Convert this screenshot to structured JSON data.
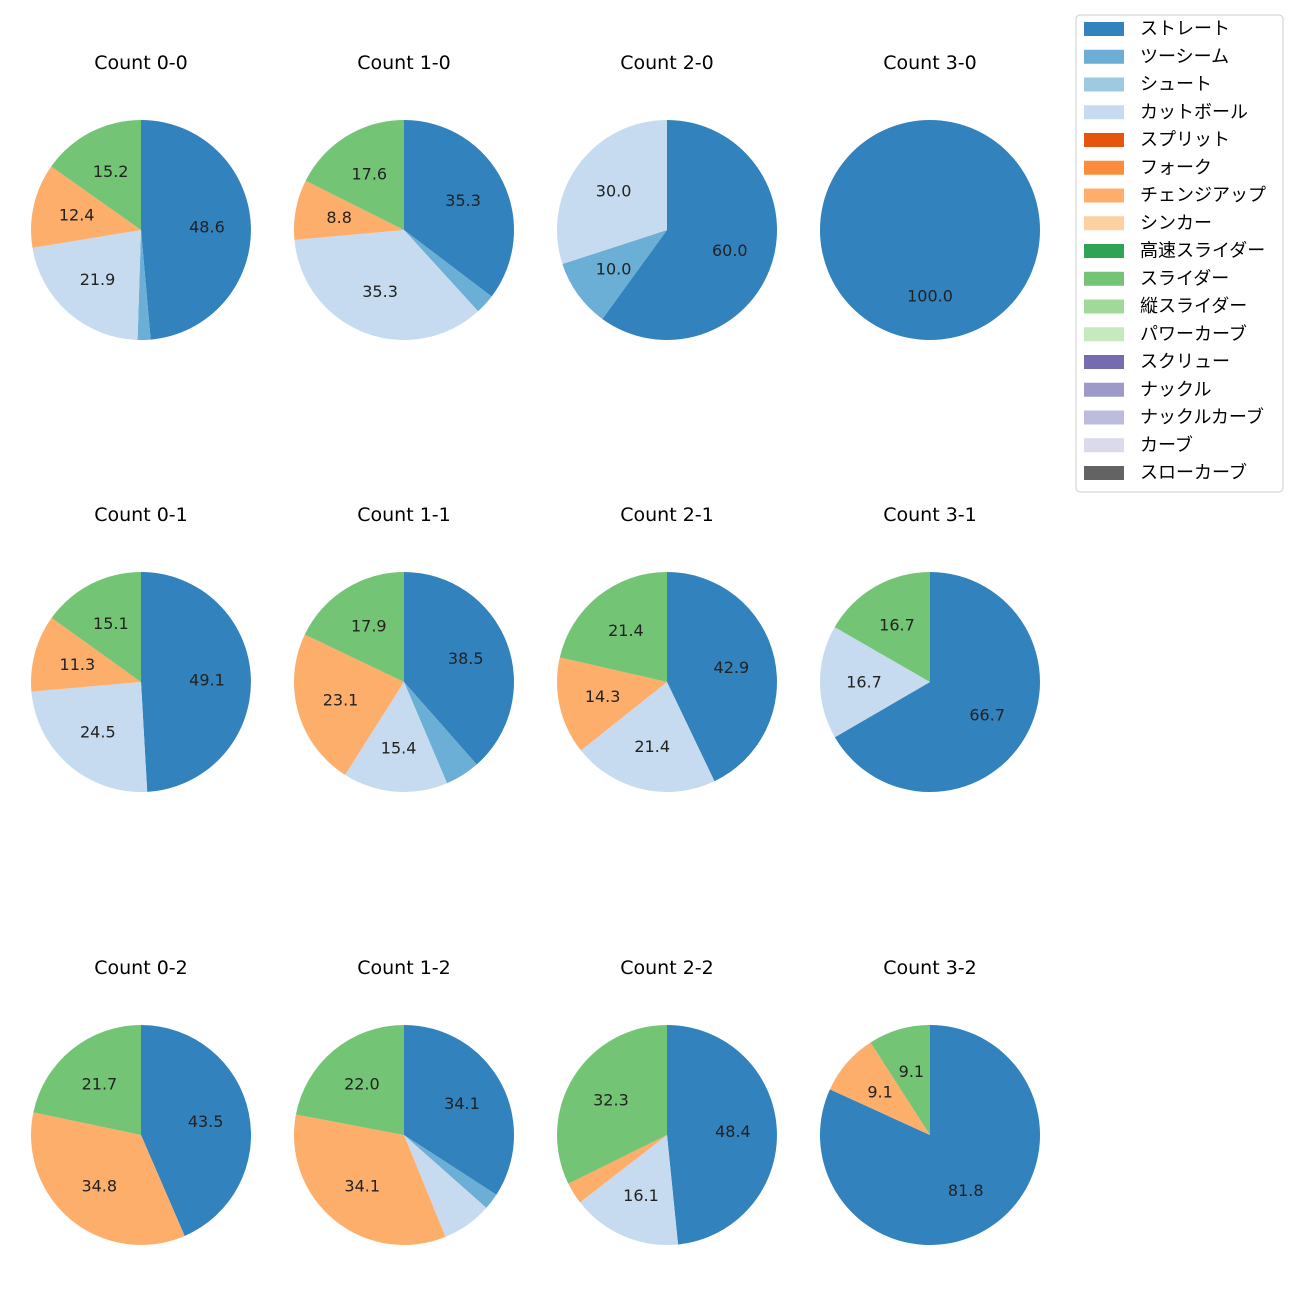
{
  "chart_data": {
    "type": "pie",
    "title": "",
    "categories": [
      "ストレート",
      "ツーシーム",
      "シュート",
      "カットボール",
      "スプリット",
      "フォーク",
      "チェンジアップ",
      "シンカー",
      "高速スライダー",
      "スライダー",
      "縦スライダー",
      "パワーカーブ",
      "スクリュー",
      "ナックル",
      "ナックルカーブ",
      "カーブ",
      "スローカーブ"
    ],
    "colors": [
      "#3182bd",
      "#6baed6",
      "#9ecae1",
      "#c6dbef",
      "#e6550d",
      "#fd8d3c",
      "#fdae6b",
      "#fdd0a2",
      "#31a354",
      "#74c476",
      "#a1d99b",
      "#c7e9c0",
      "#756bb1",
      "#9e9ac8",
      "#bcbddc",
      "#dadaeb",
      "#636363"
    ],
    "legend_position": "top-right",
    "pies": [
      {
        "title": "Count 0-0",
        "values": [
          48.6,
          1.9,
          0,
          21.9,
          0,
          0,
          12.4,
          0,
          0,
          15.2,
          0,
          0,
          0,
          0,
          0,
          0,
          0
        ],
        "labels": [
          "48.6",
          "",
          "",
          "21.9",
          "",
          "",
          "12.4",
          "",
          "",
          "15.2",
          "",
          "",
          "",
          "",
          "",
          "",
          ""
        ]
      },
      {
        "title": "Count 1-0",
        "values": [
          35.3,
          2.9,
          0,
          35.3,
          0,
          0,
          8.8,
          0,
          0,
          17.6,
          0,
          0,
          0,
          0,
          0,
          0,
          0
        ],
        "labels": [
          "35.3",
          "",
          "",
          "35.3",
          "",
          "",
          "8.8",
          "",
          "",
          "17.6",
          "",
          "",
          "",
          "",
          "",
          "",
          ""
        ]
      },
      {
        "title": "Count 2-0",
        "values": [
          60.0,
          10.0,
          0,
          30.0,
          0,
          0,
          0,
          0,
          0,
          0,
          0,
          0,
          0,
          0,
          0,
          0,
          0
        ],
        "labels": [
          "60.0",
          "10.0",
          "",
          "30.0",
          "",
          "",
          "",
          "",
          "",
          "",
          "",
          "",
          "",
          "",
          "",
          "",
          ""
        ]
      },
      {
        "title": "Count 3-0",
        "values": [
          100.0,
          0,
          0,
          0,
          0,
          0,
          0,
          0,
          0,
          0,
          0,
          0,
          0,
          0,
          0,
          0,
          0
        ],
        "labels": [
          "100.0",
          "",
          "",
          "",
          "",
          "",
          "",
          "",
          "",
          "",
          "",
          "",
          "",
          "",
          "",
          "",
          ""
        ]
      },
      {
        "title": "Count 0-1",
        "values": [
          49.1,
          0,
          0,
          24.5,
          0,
          0,
          11.3,
          0,
          0,
          15.1,
          0,
          0,
          0,
          0,
          0,
          0,
          0
        ],
        "labels": [
          "49.1",
          "",
          "",
          "24.5",
          "",
          "",
          "11.3",
          "",
          "",
          "15.1",
          "",
          "",
          "",
          "",
          "",
          "",
          ""
        ]
      },
      {
        "title": "Count 1-1",
        "values": [
          38.5,
          5.1,
          0,
          15.4,
          0,
          0,
          23.1,
          0,
          0,
          17.9,
          0,
          0,
          0,
          0,
          0,
          0,
          0
        ],
        "labels": [
          "38.5",
          "",
          "",
          "15.4",
          "",
          "",
          "23.1",
          "",
          "",
          "17.9",
          "",
          "",
          "",
          "",
          "",
          "",
          ""
        ]
      },
      {
        "title": "Count 2-1",
        "values": [
          42.9,
          0,
          0,
          21.4,
          0,
          0,
          14.3,
          0,
          0,
          21.4,
          0,
          0,
          0,
          0,
          0,
          0,
          0
        ],
        "labels": [
          "42.9",
          "",
          "",
          "21.4",
          "",
          "",
          "14.3",
          "",
          "",
          "21.4",
          "",
          "",
          "",
          "",
          "",
          "",
          ""
        ]
      },
      {
        "title": "Count 3-1",
        "values": [
          66.7,
          0,
          0,
          16.7,
          0,
          0,
          0,
          0,
          0,
          16.7,
          0,
          0,
          0,
          0,
          0,
          0,
          0
        ],
        "labels": [
          "66.7",
          "",
          "",
          "16.7",
          "",
          "",
          "",
          "",
          "",
          "16.7",
          "",
          "",
          "",
          "",
          "",
          "",
          ""
        ]
      },
      {
        "title": "Count 0-2",
        "values": [
          43.5,
          0,
          0,
          0,
          0,
          0,
          34.8,
          0,
          0,
          21.7,
          0,
          0,
          0,
          0,
          0,
          0,
          0
        ],
        "labels": [
          "43.5",
          "",
          "",
          "",
          "",
          "",
          "34.8",
          "",
          "",
          "21.7",
          "",
          "",
          "",
          "",
          "",
          "",
          ""
        ]
      },
      {
        "title": "Count 1-2",
        "values": [
          34.1,
          2.4,
          0,
          7.3,
          0,
          0,
          34.1,
          0,
          0,
          22.0,
          0,
          0,
          0,
          0,
          0,
          0,
          0
        ],
        "labels": [
          "34.1",
          "",
          "",
          "",
          "",
          "",
          "34.1",
          "",
          "",
          "22.0",
          "",
          "",
          "",
          "",
          "",
          "",
          ""
        ]
      },
      {
        "title": "Count 2-2",
        "values": [
          48.4,
          0,
          0,
          16.1,
          0,
          0,
          3.2,
          0,
          0,
          32.3,
          0,
          0,
          0,
          0,
          0,
          0,
          0
        ],
        "labels": [
          "48.4",
          "",
          "",
          "16.1",
          "",
          "",
          "",
          "",
          "",
          "32.3",
          "",
          "",
          "",
          "",
          "",
          "",
          ""
        ]
      },
      {
        "title": "Count 3-2",
        "values": [
          81.8,
          0,
          0,
          0,
          0,
          0,
          9.1,
          0,
          0,
          9.1,
          0,
          0,
          0,
          0,
          0,
          0,
          0
        ],
        "labels": [
          "81.8",
          "",
          "",
          "",
          "",
          "",
          "9.1",
          "",
          "",
          "9.1",
          "",
          "",
          "",
          "",
          "",
          "",
          ""
        ]
      }
    ]
  }
}
